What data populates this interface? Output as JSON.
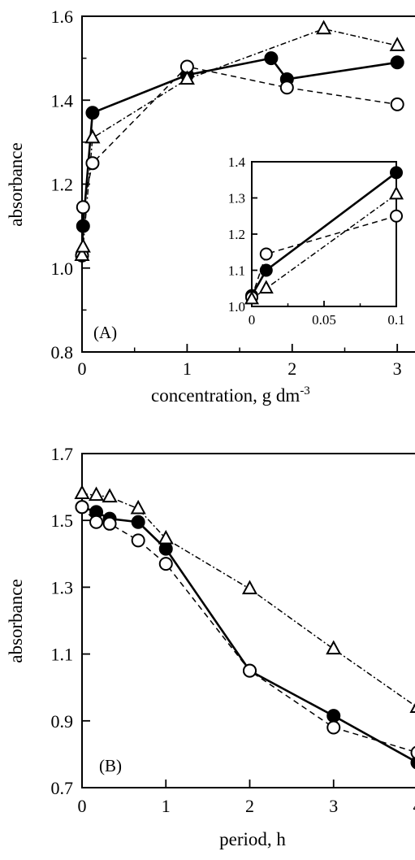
{
  "chart_data": [
    {
      "type": "line",
      "panel_label": "(A)",
      "xlabel": "concentration, g dm",
      "xlabel_sup": "-3",
      "ylabel": "absorbance",
      "xlim": [
        0,
        3.3
      ],
      "ylim": [
        0.8,
        1.6
      ],
      "xticks": [
        "0",
        "1",
        "2",
        "3"
      ],
      "xtick_values": [
        0,
        1,
        2,
        3
      ],
      "yticks": [
        "0.8",
        "1.0",
        "1.2",
        "1.4",
        "1.6"
      ],
      "ytick_values": [
        0.8,
        1.0,
        1.2,
        1.4,
        1.6
      ],
      "series": [
        {
          "marker": "filled-circle",
          "line": "solid",
          "x": [
            0,
            0.01,
            0.1,
            1,
            1.8,
            1.95,
            3
          ],
          "y": [
            1.03,
            1.1,
            1.37,
            1.46,
            1.5,
            1.45,
            1.49
          ]
        },
        {
          "marker": "open-circle",
          "line": "dashed",
          "x": [
            0,
            0.01,
            0.1,
            1,
            1.95,
            3
          ],
          "y": [
            1.03,
            1.145,
            1.25,
            1.48,
            1.43,
            1.39
          ]
        },
        {
          "marker": "open-triangle",
          "line": "dash-dot",
          "x": [
            0,
            0.01,
            0.1,
            1,
            2.3,
            3
          ],
          "y": [
            1.03,
            1.05,
            1.31,
            1.45,
            1.57,
            1.53
          ]
        }
      ],
      "inset": {
        "xlim": [
          0,
          0.1
        ],
        "ylim": [
          1.0,
          1.4
        ],
        "xticks": [
          "0",
          "0.05",
          "0.1"
        ],
        "xtick_values": [
          0,
          0.05,
          0.1
        ],
        "yticks": [
          "1.0",
          "1.1",
          "1.2",
          "1.3",
          "1.4"
        ],
        "ytick_values": [
          1.0,
          1.1,
          1.2,
          1.3,
          1.4
        ],
        "series": [
          {
            "marker": "filled-circle",
            "line": "solid",
            "x": [
              0,
              0.01,
              0.1
            ],
            "y": [
              1.03,
              1.1,
              1.37
            ]
          },
          {
            "marker": "open-circle",
            "line": "dashed",
            "x": [
              0,
              0.01,
              0.1
            ],
            "y": [
              1.025,
              1.145,
              1.25
            ]
          },
          {
            "marker": "open-triangle",
            "line": "dash-dot",
            "x": [
              0,
              0.01,
              0.1
            ],
            "y": [
              1.02,
              1.05,
              1.31
            ]
          }
        ]
      }
    },
    {
      "type": "line",
      "panel_label": "(B)",
      "xlabel": "period, h",
      "ylabel": "absorbance",
      "xlim": [
        0,
        4
      ],
      "ylim": [
        0.7,
        1.7
      ],
      "xticks": [
        "0",
        "1",
        "2",
        "3",
        "4"
      ],
      "xtick_values": [
        0,
        1,
        2,
        3,
        4
      ],
      "yticks": [
        "0.7",
        "0.9",
        "1.1",
        "1.3",
        "1.5",
        "1.7"
      ],
      "ytick_values": [
        0.7,
        0.9,
        1.1,
        1.3,
        1.5,
        1.7
      ],
      "series": [
        {
          "marker": "filled-circle",
          "line": "solid",
          "x": [
            0,
            0.17,
            0.33,
            0.67,
            1,
            2,
            3,
            4
          ],
          "y": [
            1.54,
            1.525,
            1.505,
            1.495,
            1.415,
            1.05,
            0.915,
            0.775
          ]
        },
        {
          "marker": "open-circle",
          "line": "dashed",
          "x": [
            0,
            0.17,
            0.33,
            0.67,
            1,
            2,
            3,
            4
          ],
          "y": [
            1.54,
            1.495,
            1.49,
            1.44,
            1.37,
            1.05,
            0.88,
            0.805
          ]
        },
        {
          "marker": "open-triangle",
          "line": "dash-dot",
          "x": [
            0,
            0.17,
            0.33,
            0.67,
            1,
            2,
            3,
            4
          ],
          "y": [
            1.58,
            1.575,
            1.57,
            1.535,
            1.445,
            1.295,
            1.115,
            0.94
          ]
        }
      ]
    }
  ]
}
